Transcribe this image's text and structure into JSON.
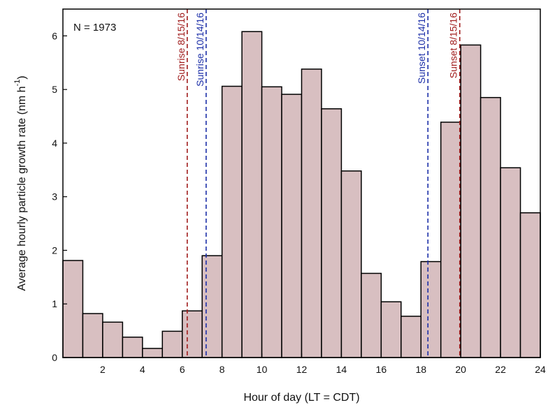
{
  "chart_data": {
    "type": "bar",
    "ylabel_main": "Average hourly particle growth rate (nm h",
    "ylabel_sup": "-1",
    "ylabel_close": ")",
    "xlabel": "Hour of day (LT = CDT)",
    "annotation": "N = 1973",
    "xlim": [
      0,
      24
    ],
    "ylim": [
      0,
      6.5
    ],
    "x_ticks": [
      2,
      4,
      6,
      8,
      10,
      12,
      14,
      16,
      18,
      20,
      22,
      24
    ],
    "y_ticks": [
      0,
      1,
      2,
      3,
      4,
      5,
      6
    ],
    "hours": [
      0,
      1,
      2,
      3,
      4,
      5,
      6,
      7,
      8,
      9,
      10,
      11,
      12,
      13,
      14,
      15,
      16,
      17,
      18,
      19,
      20,
      21,
      22,
      23
    ],
    "values": [
      1.81,
      0.82,
      0.66,
      0.38,
      0.17,
      0.49,
      0.87,
      1.9,
      5.06,
      6.08,
      5.05,
      4.91,
      5.38,
      4.64,
      3.48,
      1.57,
      1.04,
      0.77,
      1.79,
      4.39,
      5.83,
      4.85,
      3.54,
      2.7
    ],
    "bar_fill": "#d8bfc1",
    "bar_stroke": "#000000",
    "vertical_lines": [
      {
        "label": "Sunrise 8/15/16",
        "x": 6.25,
        "color": "#a01c1c"
      },
      {
        "label": "Sunrise 10/14/16",
        "x": 7.2,
        "color": "#1c2fa8"
      },
      {
        "label": "Sunset 10/14/16",
        "x": 18.35,
        "color": "#1c2fa8"
      },
      {
        "label": "Sunset 8/15/16",
        "x": 19.95,
        "color": "#a01c1c"
      }
    ]
  }
}
